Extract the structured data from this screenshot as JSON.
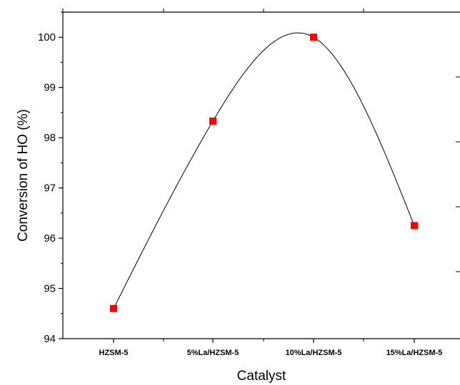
{
  "chart_data": {
    "type": "line",
    "categories": [
      "HZSM-5",
      "5%La/HZSM-5",
      "10%La/HZSM-5",
      "15%La/HZSM-5"
    ],
    "series": [
      {
        "values": [
          94.6,
          98.33,
          100.0,
          96.25
        ],
        "color": "#ff0000"
      }
    ],
    "xlabel": "Catalyst",
    "ylabel": "Conversion of HO (%)",
    "ylim": [
      94,
      100.5
    ],
    "y_ticks": [
      94,
      95,
      96,
      97,
      98,
      99,
      100
    ],
    "y_tick_labels": [
      "94",
      "95",
      "96",
      "97",
      "98",
      "99",
      "100"
    ],
    "grid": false,
    "line_style": "smooth spline through points",
    "marker": "square"
  }
}
